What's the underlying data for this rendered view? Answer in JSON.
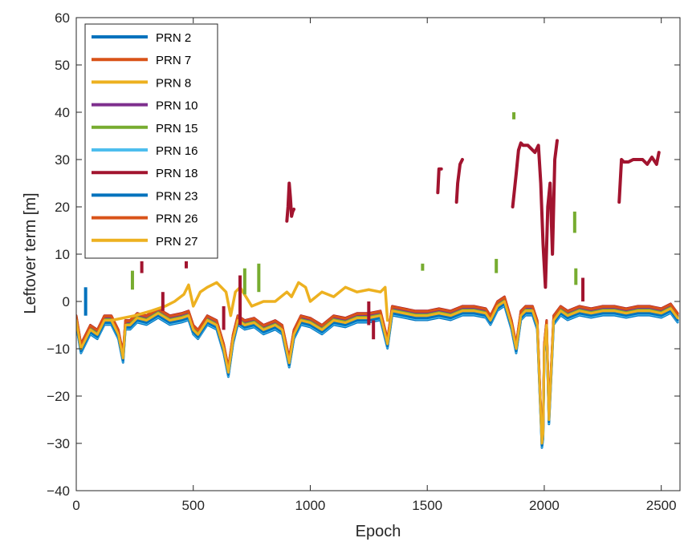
{
  "chart_data": {
    "type": "line",
    "xlabel": "Epoch",
    "ylabel": "Leftover term [m]",
    "xlim": [
      0,
      2580
    ],
    "ylim": [
      -40,
      60
    ],
    "xticks": [
      0,
      500,
      1000,
      1500,
      2000,
      2500
    ],
    "yticks": [
      -40,
      -30,
      -20,
      -10,
      0,
      10,
      20,
      30,
      40,
      50,
      60
    ],
    "grid": false,
    "legend_position": "top-left",
    "base_x": [
      0,
      20,
      40,
      60,
      90,
      120,
      150,
      180,
      200,
      210,
      230,
      260,
      300,
      350,
      400,
      450,
      480,
      500,
      520,
      560,
      600,
      630,
      650,
      670,
      690,
      720,
      760,
      800,
      850,
      880,
      910,
      930,
      960,
      1000,
      1050,
      1100,
      1150,
      1200,
      1250,
      1300,
      1330,
      1350,
      1400,
      1450,
      1500,
      1550,
      1600,
      1650,
      1700,
      1750,
      1770,
      1800,
      1830,
      1860,
      1880,
      1900,
      1920,
      1950,
      1970,
      1990,
      1995,
      2000,
      2010,
      2020,
      2040,
      2070,
      2100,
      2150,
      2200,
      2250,
      2300,
      2350,
      2400,
      2450,
      2500,
      2540,
      2570
    ],
    "base_y": [
      -4,
      -10,
      -8,
      -6,
      -7,
      -4,
      -4,
      -7,
      -12,
      -5,
      -5,
      -3.5,
      -4,
      -2.5,
      -4,
      -3.5,
      -3,
      -6,
      -7,
      -4,
      -5,
      -10,
      -15,
      -8,
      -4,
      -5,
      -4.5,
      -6,
      -5,
      -6,
      -13,
      -7,
      -4,
      -4.5,
      -6,
      -4,
      -4.5,
      -3.5,
      -3.5,
      -3,
      -9,
      -2,
      -2.5,
      -3,
      -3,
      -2.5,
      -3,
      -2,
      -2,
      -2.5,
      -4,
      -1,
      0,
      -5,
      -10,
      -3,
      -2,
      -2,
      -5,
      -30,
      -28,
      -10,
      -5,
      -25,
      -4,
      -2,
      -3,
      -2,
      -2.5,
      -2,
      -2,
      -2.5,
      -2,
      -2,
      -2.5,
      -1.5,
      -3.5
    ],
    "series": [
      {
        "name": "PRN 2",
        "color": "#0072BD",
        "offset": -0.9
      },
      {
        "name": "PRN 7",
        "color": "#D95319",
        "offset": 0.6
      },
      {
        "name": "PRN 8",
        "color": "#EDB120",
        "offset": -0.3
      },
      {
        "name": "PRN 10",
        "color": "#7E2F8E",
        "offset": 0.4
      },
      {
        "name": "PRN 15",
        "color": "#77AC30",
        "offset": 0.2
      },
      {
        "name": "PRN 16",
        "color": "#4DBEEE",
        "offset": -0.7
      },
      {
        "name": "PRN 18",
        "color": "#A2142F",
        "offset": 1.0
      },
      {
        "name": "PRN 23",
        "color": "#0072BD",
        "offset": -0.5
      },
      {
        "name": "PRN 26",
        "color": "#D95319",
        "offset": 0.9
      },
      {
        "name": "PRN 27",
        "color": "#EDB120",
        "offset": 0.0
      }
    ],
    "prn8_x": [
      150,
      250,
      320,
      380,
      420,
      460,
      480,
      500,
      530,
      560,
      600,
      640,
      660,
      680,
      700,
      750,
      800,
      850,
      900,
      920,
      950,
      980,
      1000,
      1050,
      1100,
      1150,
      1200,
      1250,
      1300,
      1320,
      1330
    ],
    "prn8_y": [
      -4,
      -3,
      -2,
      -1,
      0,
      1.5,
      3.5,
      -1,
      2,
      3,
      4,
      2,
      -3,
      2,
      3,
      -1,
      0,
      0,
      2,
      1,
      4,
      3,
      0,
      2,
      1,
      3,
      2,
      2.5,
      2,
      3,
      -4
    ],
    "prn18_segments": [
      {
        "x": [
          900,
          905,
          910,
          915,
          920,
          925,
          930
        ],
        "y": [
          17,
          20,
          25,
          22,
          18,
          19,
          19.5
        ]
      },
      {
        "x": [
          1545,
          1550,
          1560
        ],
        "y": [
          23,
          28,
          28
        ]
      },
      {
        "x": [
          1625,
          1630,
          1640,
          1650
        ],
        "y": [
          21,
          25,
          29,
          30
        ]
      },
      {
        "x": [
          1865,
          1880,
          1890,
          1900,
          1910,
          1930,
          1950,
          1960,
          1965
        ],
        "y": [
          20,
          27,
          32,
          33.5,
          33,
          33,
          32,
          31.5,
          32
        ]
      },
      {
        "x": [
          1965,
          1975,
          1985,
          1995,
          2005,
          2015,
          2025,
          2035,
          2045,
          2055
        ],
        "y": [
          32,
          33,
          25,
          12,
          3,
          20,
          25,
          10,
          30,
          34
        ]
      },
      {
        "x": [
          2320,
          2330,
          2340,
          2360,
          2380,
          2400,
          2420,
          2440,
          2460,
          2480,
          2490
        ],
        "y": [
          21,
          30,
          29.5,
          29.5,
          30,
          30,
          30,
          29,
          30.5,
          29,
          31.5
        ]
      }
    ],
    "spikes": [
      {
        "x": 40,
        "y1": -3,
        "y2": 3,
        "color": "#0072BD"
      },
      {
        "x": 240,
        "y1": 2.5,
        "y2": 6.5,
        "color": "#77AC30"
      },
      {
        "x": 280,
        "y1": 6,
        "y2": 8.5,
        "color": "#A2142F"
      },
      {
        "x": 470,
        "y1": 7,
        "y2": 8.5,
        "color": "#A2142F"
      },
      {
        "x": 370,
        "y1": -2,
        "y2": 2,
        "color": "#A2142F"
      },
      {
        "x": 630,
        "y1": -6,
        "y2": -1,
        "color": "#A2142F"
      },
      {
        "x": 700,
        "y1": -5,
        "y2": 5.5,
        "color": "#A2142F"
      },
      {
        "x": 720,
        "y1": 1.5,
        "y2": 7,
        "color": "#77AC30"
      },
      {
        "x": 780,
        "y1": 2,
        "y2": 8,
        "color": "#77AC30"
      },
      {
        "x": 1250,
        "y1": -5,
        "y2": 0,
        "color": "#A2142F"
      },
      {
        "x": 1270,
        "y1": -8,
        "y2": -4,
        "color": "#A2142F"
      },
      {
        "x": 1480,
        "y1": 6.5,
        "y2": 8,
        "color": "#77AC30"
      },
      {
        "x": 1795,
        "y1": 6,
        "y2": 9,
        "color": "#77AC30"
      },
      {
        "x": 1870,
        "y1": 38.5,
        "y2": 40,
        "color": "#77AC30"
      },
      {
        "x": 2130,
        "y1": 14.5,
        "y2": 19,
        "color": "#77AC30"
      },
      {
        "x": 2135,
        "y1": 3.5,
        "y2": 7,
        "color": "#77AC30"
      },
      {
        "x": 2165,
        "y1": 0,
        "y2": 5,
        "color": "#A2142F"
      }
    ]
  }
}
